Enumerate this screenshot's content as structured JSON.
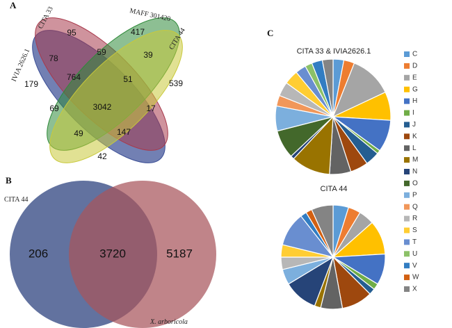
{
  "panels": {
    "a": "A",
    "b": "B",
    "c": "C"
  },
  "venn4": {
    "sets": [
      {
        "name": "IVIA 2626.1",
        "color": "#3c4f96"
      },
      {
        "name": "CITA 33",
        "color": "#a83a4c"
      },
      {
        "name": "MAFF 301420",
        "color": "#2f8a3a"
      },
      {
        "name": "CITA 44",
        "color": "#c9c93a"
      }
    ],
    "regions": [
      {
        "sets": [
          "IVIA 2626.1"
        ],
        "count": "179"
      },
      {
        "sets": [
          "CITA 33"
        ],
        "count": "95"
      },
      {
        "sets": [
          "MAFF 301420"
        ],
        "count": "417"
      },
      {
        "sets": [
          "CITA 44"
        ],
        "count": "539"
      },
      {
        "sets": [
          "IVIA 2626.1",
          "CITA 33"
        ],
        "count": "78"
      },
      {
        "sets": [
          "CITA 33",
          "MAFF 301420"
        ],
        "count": "59"
      },
      {
        "sets": [
          "MAFF 301420",
          "CITA 44"
        ],
        "count": "39"
      },
      {
        "sets": [
          "CITA 33",
          "MAFF 301420",
          "IVIA 2626.1"
        ],
        "count": "764"
      },
      {
        "sets": [
          "CITA 33",
          "MAFF 301420",
          "CITA 44"
        ],
        "count": "51"
      },
      {
        "sets": [
          "IVIA 2626.1",
          "MAFF 301420"
        ],
        "count": "69"
      },
      {
        "sets": [
          "IVIA 2626.1",
          "CITA 33",
          "MAFF 301420",
          "CITA 44"
        ],
        "count": "3042"
      },
      {
        "sets": [
          "CITA 33",
          "CITA 44"
        ],
        "count": "17"
      },
      {
        "sets": [
          "IVIA 2626.1",
          "MAFF 301420",
          "CITA 44"
        ],
        "count": "49"
      },
      {
        "sets": [
          "IVIA 2626.1",
          "CITA 33",
          "CITA 44"
        ],
        "count": "147"
      },
      {
        "sets": [
          "IVIA 2626.1",
          "CITA 44"
        ],
        "count": "42"
      }
    ]
  },
  "venn2": {
    "left": {
      "name": "CITA 44",
      "only": "206",
      "color": "#5a6a9a"
    },
    "right": {
      "name": "X. arboricola",
      "only": "5187",
      "color": "#a8555c"
    },
    "shared": "3720"
  },
  "chart_data": [
    {
      "type": "pie",
      "title": "CITA 33 & IVIA2626.1",
      "categories": [
        "C",
        "D",
        "E",
        "G",
        "H",
        "I",
        "J",
        "K",
        "L",
        "M",
        "N",
        "O",
        "P",
        "Q",
        "R",
        "S",
        "T",
        "U",
        "V",
        "W",
        "X"
      ],
      "values": [
        3,
        3,
        12,
        8,
        9,
        1,
        4,
        5,
        6,
        11,
        1,
        8,
        7,
        3,
        4,
        4,
        3,
        2,
        3,
        0,
        3
      ]
    },
    {
      "type": "pie",
      "title": "CITA 44",
      "categories": [
        "C",
        "D",
        "E",
        "G",
        "H",
        "I",
        "J",
        "K",
        "L",
        "M",
        "N",
        "O",
        "P",
        "Q",
        "R",
        "S",
        "T",
        "U",
        "V",
        "W",
        "X"
      ],
      "values": [
        5,
        4,
        5,
        11,
        10,
        2,
        2,
        10,
        7,
        2,
        11,
        0,
        5,
        0,
        4,
        4,
        11,
        0,
        2,
        2,
        7
      ]
    }
  ],
  "legend": {
    "colors": [
      "#5b9bd5",
      "#ed7d31",
      "#a5a5a5",
      "#ffc000",
      "#4472c4",
      "#70ad47",
      "#255e91",
      "#9e480e",
      "#636363",
      "#997300",
      "#264478",
      "#43682b",
      "#7cafdd",
      "#f1975a",
      "#b7b7b7",
      "#ffcd33",
      "#698ed0",
      "#8cc168",
      "#327dc2",
      "#d26012",
      "#848484"
    ]
  }
}
